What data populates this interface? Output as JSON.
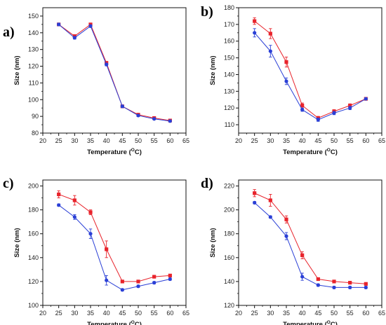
{
  "colors": {
    "series_red": "#e8232b",
    "series_blue": "#2a3fd6",
    "axis": "#111111"
  },
  "chart_data": [
    {
      "type": "line",
      "panel_label": "a)",
      "xlabel": "Temperature (",
      "xlabel_sup": "O",
      "xlabel_end": "C)",
      "ylabel": "Size (nm)",
      "xlim": [
        20,
        65
      ],
      "ylim": [
        80,
        155
      ],
      "xticks": [
        20,
        25,
        30,
        35,
        40,
        45,
        50,
        55,
        60,
        65
      ],
      "yticks": [
        80,
        90,
        100,
        110,
        120,
        130,
        140,
        150
      ],
      "x": [
        25,
        30,
        35,
        40,
        45,
        50,
        55,
        60
      ],
      "series": [
        {
          "color": "red",
          "marker": "square",
          "values": [
            145,
            138,
            145,
            122,
            96,
            91,
            89,
            87.5
          ],
          "errors": [
            0.8,
            0.8,
            0.8,
            0.8,
            0.8,
            0.6,
            0.5,
            0.5
          ]
        },
        {
          "color": "blue",
          "marker": "circle",
          "values": [
            145,
            137,
            144,
            121,
            96,
            90.5,
            88.5,
            87.2
          ],
          "errors": [
            0.8,
            0.8,
            0.8,
            0.8,
            0.8,
            0.6,
            0.5,
            0.5
          ]
        }
      ]
    },
    {
      "type": "line",
      "panel_label": "b)",
      "xlabel": "Temperature (",
      "xlabel_sup": "O",
      "xlabel_end": "C)",
      "ylabel": "Size (nm)",
      "xlim": [
        20,
        65
      ],
      "ylim": [
        105,
        180
      ],
      "xticks": [
        20,
        25,
        30,
        35,
        40,
        45,
        50,
        55,
        60,
        65
      ],
      "yticks": [
        110,
        120,
        130,
        140,
        150,
        160,
        170,
        180
      ],
      "x": [
        25,
        30,
        35,
        40,
        45,
        50,
        55,
        60
      ],
      "series": [
        {
          "color": "red",
          "marker": "square",
          "values": [
            172,
            164.5,
            147.5,
            121.5,
            114,
            118,
            121.5,
            125.5
          ],
          "errors": [
            2,
            3,
            3,
            1.5,
            1,
            1,
            1,
            0.5
          ]
        },
        {
          "color": "blue",
          "marker": "circle",
          "values": [
            165,
            154,
            136,
            119,
            113,
            117,
            120,
            125.5
          ],
          "errors": [
            2.5,
            3.5,
            2,
            1,
            1,
            1,
            1,
            0.5
          ]
        }
      ]
    },
    {
      "type": "line",
      "panel_label": "c)",
      "xlabel": "Temperature (",
      "xlabel_sup": "O",
      "xlabel_end": "C)",
      "ylabel": "Size (nm)",
      "xlim": [
        20,
        65
      ],
      "ylim": [
        100,
        205
      ],
      "xticks": [
        20,
        25,
        30,
        35,
        40,
        45,
        50,
        55,
        60,
        65
      ],
      "yticks": [
        100,
        120,
        140,
        160,
        180,
        200
      ],
      "x": [
        25,
        30,
        35,
        40,
        45,
        50,
        55,
        60
      ],
      "series": [
        {
          "color": "red",
          "marker": "square",
          "values": [
            193,
            188,
            178,
            147,
            120,
            120,
            124,
            125
          ],
          "errors": [
            3,
            4,
            2,
            7,
            1,
            1,
            1,
            1
          ]
        },
        {
          "color": "blue",
          "marker": "circle",
          "values": [
            184,
            174,
            160,
            121,
            113,
            116,
            119,
            122
          ],
          "errors": [
            1,
            2,
            4,
            4,
            1,
            1,
            1,
            1
          ]
        }
      ]
    },
    {
      "type": "line",
      "panel_label": "d)",
      "xlabel": "Temperature (",
      "xlabel_sup": "O",
      "xlabel_end": "C)",
      "ylabel": "Size (nm)",
      "xlim": [
        20,
        65
      ],
      "ylim": [
        120,
        225
      ],
      "xticks": [
        20,
        25,
        30,
        35,
        40,
        45,
        50,
        55,
        60,
        65
      ],
      "yticks": [
        120,
        140,
        160,
        180,
        200,
        220
      ],
      "x": [
        25,
        30,
        35,
        40,
        45,
        50,
        55,
        60
      ],
      "series": [
        {
          "color": "red",
          "marker": "square",
          "values": [
            214,
            208,
            192,
            162,
            142,
            140,
            139,
            138
          ],
          "errors": [
            3,
            5,
            3,
            3,
            1,
            1,
            1,
            1
          ]
        },
        {
          "color": "blue",
          "marker": "circle",
          "values": [
            206,
            194,
            178,
            144,
            137,
            135,
            135,
            135
          ],
          "errors": [
            1,
            1,
            3,
            3,
            1,
            1,
            1,
            1
          ]
        }
      ]
    }
  ]
}
